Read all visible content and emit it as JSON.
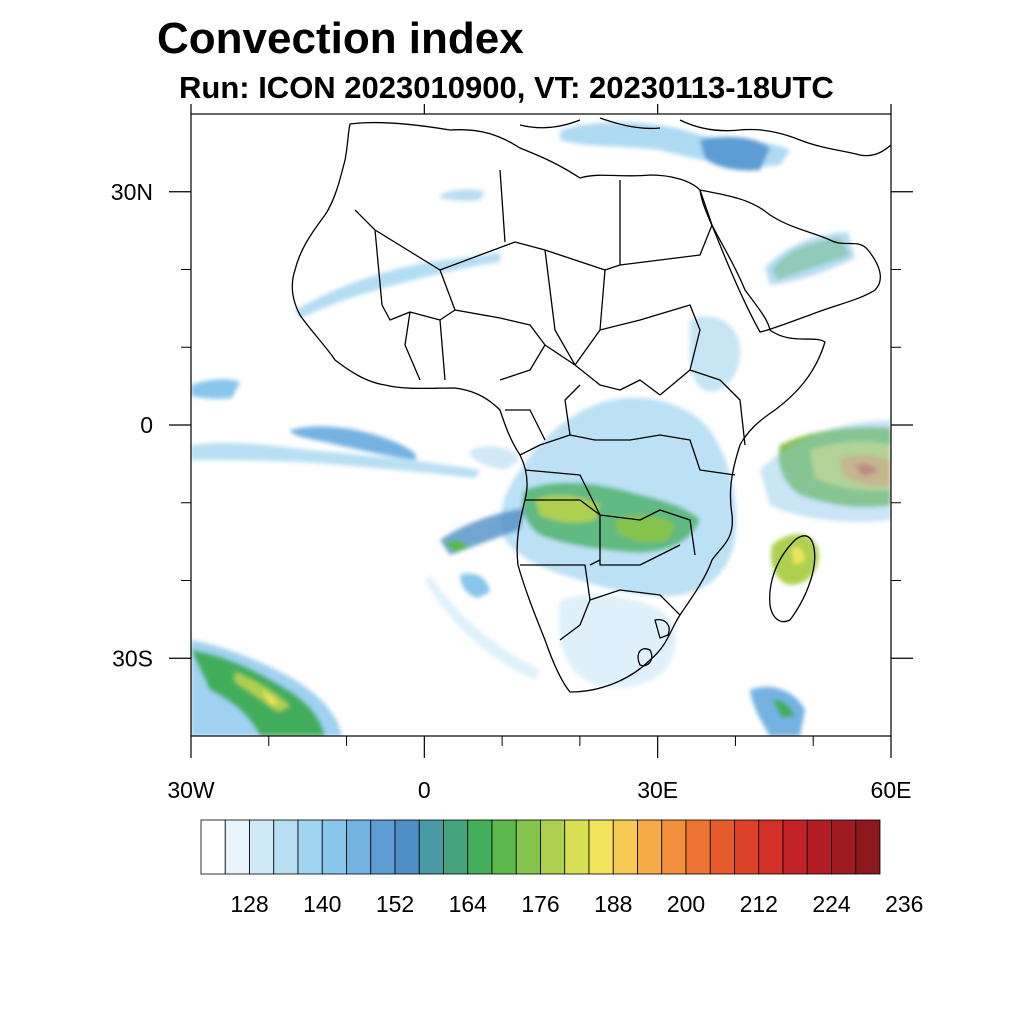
{
  "title": "Convection index",
  "subtitle": "Run: ICON 2023010900,  VT: 20230113-18UTC",
  "map": {
    "region": "Africa",
    "extent": {
      "lon_min": -30,
      "lon_max": 60,
      "lat_min": -40,
      "lat_max": 40
    },
    "lat_ticks": [
      {
        "lat": 30,
        "label": "30N"
      },
      {
        "lat": 0,
        "label": "0"
      },
      {
        "lat": -30,
        "label": "30S"
      }
    ],
    "lon_ticks": [
      {
        "lon": -30,
        "label": "30W"
      },
      {
        "lon": 0,
        "label": "0"
      },
      {
        "lon": 30,
        "label": "30E"
      },
      {
        "lon": 60,
        "label": "60E"
      }
    ],
    "minor_lon_ticks": [
      -20,
      -10,
      10,
      20,
      40,
      50
    ],
    "minor_lat_ticks": [
      20,
      10,
      -10,
      -20
    ],
    "field": "convection index",
    "high_value_regions": [
      "Indian Ocean east of Madagascar (near 55E, 5S)",
      "Southern Atlantic near 25W, 35S",
      "Zambia / Angola band (near 20E, 12S)",
      "Madagascar east coast"
    ]
  },
  "colorbar": {
    "colors": [
      "#ffffff",
      "#e8f4fb",
      "#d0e9f7",
      "#b8def3",
      "#a0d4f0",
      "#88c6ec",
      "#74b2e2",
      "#5d9dd3",
      "#4f8fc6",
      "#4a9aa3",
      "#47a37e",
      "#43ae5c",
      "#5cb84a",
      "#86c34d",
      "#aed051",
      "#d8df55",
      "#f1e35b",
      "#f6c953",
      "#f5aa48",
      "#f28f3c",
      "#ee7434",
      "#e65b2e",
      "#dd4128",
      "#d32f27",
      "#c32328",
      "#b31b25",
      "#a01b21",
      "#8d181d"
    ],
    "labels": [
      "128",
      "140",
      "152",
      "164",
      "176",
      "188",
      "200",
      "212",
      "224",
      "236"
    ]
  }
}
